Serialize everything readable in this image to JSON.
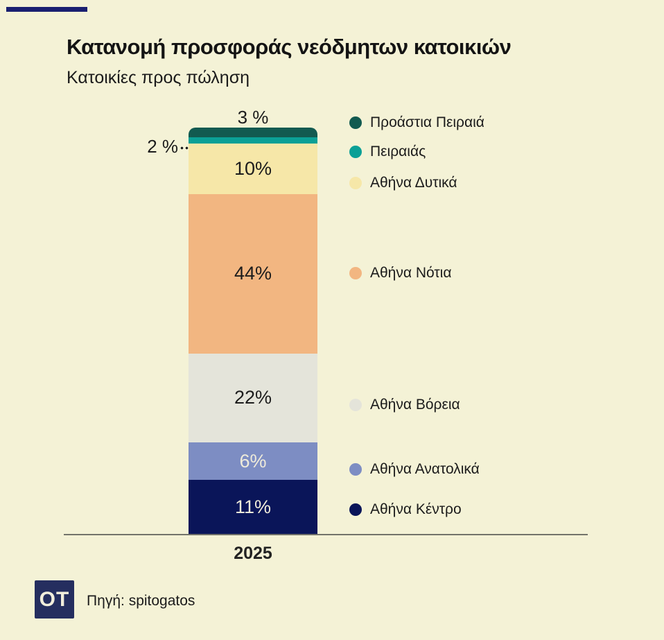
{
  "page": {
    "background": "#F4F2D6",
    "accent_bar_color": "#1A2070",
    "axis_color": "#73736B"
  },
  "chart_data": {
    "type": "bar",
    "stacked": true,
    "title": "Κατανομή προσφοράς νεόδμητων κατοικιών",
    "subtitle": "Κατοικίες προς πώληση",
    "categories": [
      "2025"
    ],
    "unit": "%",
    "legend_position": "right",
    "grid": false,
    "series": [
      {
        "slug": "proastia-peiraia",
        "name": "Προάστια Πειραιά",
        "value": 3,
        "label": "3 %",
        "color": "#125A50",
        "label_placement": "above",
        "label_color": "#1C1C1C",
        "legend_center_y": 177
      },
      {
        "slug": "peiraias",
        "name": "Πειραιάς",
        "value": 2,
        "label": "2 %",
        "color": "#0BA096",
        "label_placement": "left",
        "label_color": "#1C1C1C",
        "legend_center_y": 219
      },
      {
        "slug": "athina-dytika",
        "name": "Αθήνα Δυτικά",
        "value": 10,
        "label": "10%",
        "color": "#F6E7A8",
        "label_placement": "inside",
        "label_color": "#1C1C1C",
        "legend_center_y": 264
      },
      {
        "slug": "athina-notia",
        "name": "Αθήνα Νότια",
        "value": 44,
        "label": "44%",
        "color": "#F2B681",
        "label_placement": "inside",
        "label_color": "#1C1C1C",
        "legend_center_y": 394
      },
      {
        "slug": "athina-voreia",
        "name": "Αθήνα Βόρεια",
        "value": 22,
        "label": "22%",
        "color": "#E4E4DA",
        "label_placement": "inside",
        "label_color": "#1C1C1C",
        "legend_center_y": 584
      },
      {
        "slug": "athina-anatolika",
        "name": "Αθήνα Ανατολικά",
        "value": 6,
        "label": "6%",
        "color": "#7D8DC3",
        "label_placement": "inside",
        "label_color": "#EFEBDA",
        "legend_center_y": 677
      },
      {
        "slug": "athina-kentro",
        "name": "Αθήνα Κέντρο",
        "value": 11,
        "label": "11%",
        "color": "#0A1559",
        "label_placement": "inside",
        "label_color": "#EFEBDA",
        "legend_center_y": 735
      }
    ]
  },
  "footer": {
    "logo_text": "OT",
    "source": "Πηγή: spitogatos"
  }
}
